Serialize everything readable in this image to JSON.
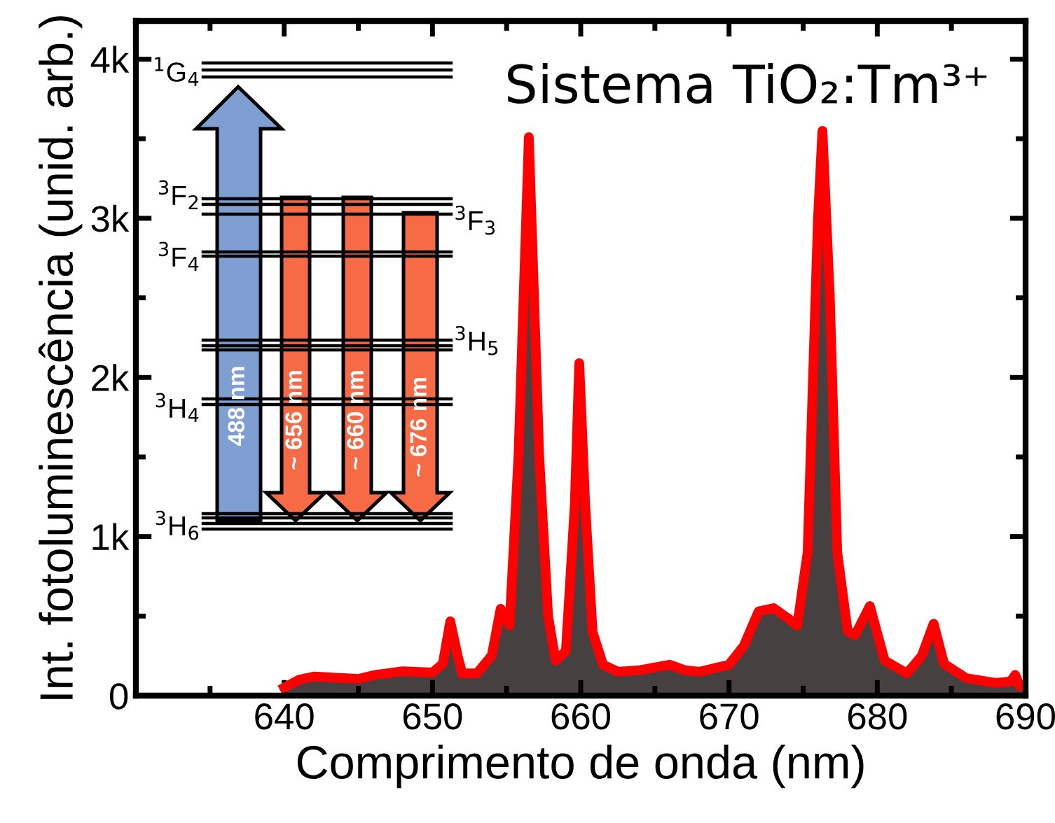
{
  "chart_data": {
    "type": "area",
    "title": "Sistema TiO₂:Tm³⁺",
    "xlabel": "Comprimento de onda (nm)",
    "ylabel": "Int. fotoluminescência (unid. arb.)",
    "xlim": [
      630,
      690
    ],
    "xticks": [
      640,
      650,
      660,
      670,
      680,
      690
    ],
    "ylim": [
      0,
      4240
    ],
    "yticks": [
      {
        "value": 0,
        "label": "0"
      },
      {
        "value": 1000,
        "label": "1k"
      },
      {
        "value": 2000,
        "label": "2k"
      },
      {
        "value": 3000,
        "label": "3k"
      },
      {
        "value": 4000,
        "label": "4k"
      }
    ],
    "grid": false,
    "marker": "none",
    "line_style": "solid",
    "series": [
      {
        "color": "#ff0000",
        "x": [
          640,
          641,
          642,
          644,
          645,
          646,
          648,
          650,
          650.7,
          651.2,
          651.7,
          652,
          653,
          654,
          654.6,
          655.2,
          655.8,
          656.5,
          657.2,
          657.8,
          658.3,
          659,
          659.6,
          659.9,
          660.3,
          660.8,
          661.5,
          662.5,
          664,
          666,
          667,
          668,
          670,
          671,
          672,
          673,
          674,
          674.6,
          675.3,
          676,
          676.3,
          676.8,
          677.3,
          678,
          678.5,
          679.5,
          680.5,
          682,
          683,
          683.8,
          684.5,
          686,
          688,
          689,
          689.3,
          689.6,
          690
        ],
        "values": [
          50,
          100,
          120,
          110,
          105,
          128,
          153,
          145,
          200,
          467,
          250,
          140,
          140,
          252,
          546,
          440,
          1500,
          3510,
          1500,
          500,
          220,
          280,
          1200,
          2090,
          1200,
          400,
          194,
          150,
          160,
          194,
          160,
          150,
          194,
          313,
          530,
          550,
          484,
          440,
          900,
          3000,
          3550,
          2500,
          900,
          405,
          380,
          563,
          220,
          140,
          250,
          452,
          200,
          110,
          80,
          90,
          130,
          60,
          60
        ]
      }
    ],
    "annotations": [
      "$^{1}$G$_{4}$",
      "$^{3}$F$_{2}$",
      "$^{3}$F$_{3}$",
      "$^{3}$F$_{4}$",
      "$^{3}$H$_{5}$",
      "$^{3}$H$_{4}$",
      "$^{3}$H$_{6}$",
      "488 nm",
      "~ 656 nm",
      "~ 660 nm",
      "~ 676 nm"
    ]
  }
}
